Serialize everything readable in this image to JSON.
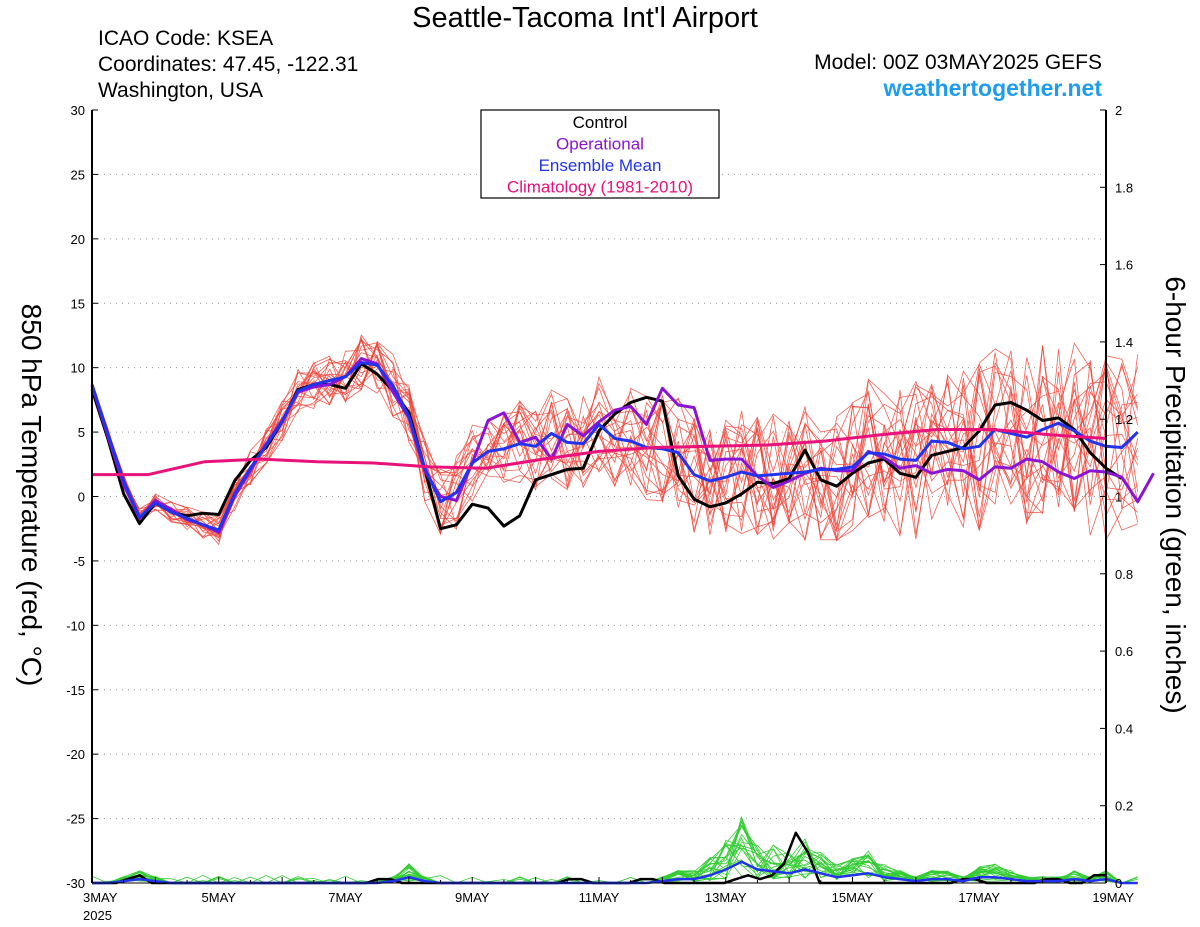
{
  "header": {
    "title": "Seattle-Tacoma Int'l Airport",
    "icao": "ICAO Code: KSEA",
    "coords": "Coordinates: 47.45, -122.31",
    "region": "Washington, USA",
    "model": "Model: 00Z 03MAY2025 GEFS",
    "site": "weathertogether.net"
  },
  "colors": {
    "control": "#000000",
    "operational": "#8a14d6",
    "ensemble_mean": "#2233ee",
    "climatology": "#e8127a",
    "members_temp": "#f0453a",
    "members_precip": "#33cc33",
    "site": "#1e9cf0"
  },
  "chart_data": {
    "type": "line",
    "ylabel": "850 hPa Temperature (red, °C)",
    "y2label": "6-hour Precipitation (green, inches)",
    "ylim": [
      -30,
      30
    ],
    "y2lim": [
      0,
      2
    ],
    "xlim_days": [
      0,
      16
    ],
    "grid": true,
    "legend_position": "top-center",
    "yticks": [
      "30",
      "25",
      "20",
      "15",
      "10",
      "5",
      "0",
      "-5",
      "-10",
      "-15",
      "-20",
      "-25",
      "-30"
    ],
    "y2ticks": [
      "2",
      "1.8",
      "1.6",
      "1.4",
      "1.2",
      "1",
      "0.8",
      "0.6",
      "0.4",
      "0.2",
      "0"
    ],
    "xticks": [
      {
        "day": 0,
        "label": "3MAY",
        "sub": "2025"
      },
      {
        "day": 2,
        "label": "5MAY"
      },
      {
        "day": 4,
        "label": "7MAY"
      },
      {
        "day": 6,
        "label": "9MAY"
      },
      {
        "day": 8,
        "label": "11MAY"
      },
      {
        "day": 10,
        "label": "13MAY"
      },
      {
        "day": 12,
        "label": "15MAY"
      },
      {
        "day": 14,
        "label": "17MAY"
      },
      {
        "day": 16,
        "label": "19MAY"
      }
    ],
    "legend": [
      "Control",
      "Operational",
      "Ensemble Mean",
      "Climatology (1981-2010)"
    ],
    "x_step_days": 0.25,
    "series": [
      {
        "name": "Control",
        "values": [
          8.3,
          4.5,
          0.2,
          -2.1,
          -0.5,
          -1.2,
          -1.5,
          -1.3,
          -1.4,
          1.2,
          2.8,
          3.8,
          5.8,
          8.3,
          8.7,
          8.7,
          8.4,
          10.3,
          9.5,
          8.2,
          6.5,
          2.2,
          -2.5,
          -2.2,
          -0.6,
          -0.9,
          -2.3,
          -1.5,
          1.3,
          1.7,
          2.1,
          2.2,
          5.1,
          6.4,
          7.3,
          7.7,
          7.4,
          1.6,
          -0.2,
          -0.8,
          -0.5,
          0.2,
          1.1,
          1.0,
          1.4,
          3.6,
          1.3,
          0.8,
          1.8,
          2.6,
          2.9,
          1.8,
          1.5,
          3.2,
          3.5,
          3.8,
          5.1,
          7.1,
          7.3,
          6.7,
          5.9,
          6.1,
          5.2,
          3.4,
          2.2,
          1.4
        ]
      },
      {
        "name": "Operational",
        "values": [
          8.6,
          4.7,
          0.9,
          -1.7,
          -0.3,
          -1.0,
          -1.8,
          -2.2,
          -2.8,
          0.0,
          2.0,
          4.1,
          5.9,
          8.1,
          8.5,
          8.7,
          9.3,
          10.7,
          10.3,
          8.1,
          6.1,
          2.0,
          0.0,
          -0.3,
          2.6,
          5.9,
          6.5,
          4.2,
          4.6,
          2.9,
          5.6,
          4.7,
          5.8,
          6.7,
          7.0,
          5.6,
          8.4,
          7.1,
          6.9,
          2.8,
          2.9,
          2.9,
          1.6,
          0.7,
          1.2,
          1.8,
          2.2,
          2.0,
          2.0,
          3.5,
          3.0,
          2.2,
          2.4,
          1.8,
          2.1,
          2.0,
          1.3,
          2.3,
          2.2,
          2.9,
          2.7,
          1.9,
          1.4,
          2.0,
          1.9,
          1.5,
          -0.4,
          1.8
        ]
      },
      {
        "name": "Ensemble Mean",
        "values": [
          8.7,
          4.9,
          1.2,
          -1.6,
          -0.5,
          -1.2,
          -1.7,
          -2.2,
          -2.6,
          0.2,
          2.2,
          4.0,
          5.8,
          8.2,
          8.7,
          9.0,
          9.3,
          10.4,
          10.2,
          8.6,
          6.2,
          2.2,
          -0.4,
          0.3,
          2.6,
          3.5,
          3.7,
          4.1,
          3.9,
          4.9,
          4.2,
          4.1,
          5.6,
          4.5,
          4.3,
          3.8,
          3.7,
          3.4,
          1.7,
          1.2,
          1.5,
          1.9,
          1.6,
          1.7,
          1.8,
          1.9,
          2.1,
          2.1,
          2.3,
          3.4,
          3.3,
          2.9,
          2.8,
          4.3,
          4.2,
          3.7,
          3.9,
          5.2,
          4.9,
          4.6,
          5.2,
          5.7,
          5.1,
          4.3,
          3.9,
          3.8,
          5.0
        ]
      },
      {
        "name": "Climatology (1981-2010)",
        "values": [
          1.7,
          1.7,
          2.7,
          2.9,
          2.7,
          2.6,
          2.3,
          2.2,
          2.9,
          3.5,
          3.8,
          3.9,
          4.0,
          4.3,
          4.8,
          5.2,
          5.2,
          4.8,
          4.5
        ]
      },
      {
        "name": "Control precip",
        "values": [
          0,
          0,
          0,
          0.01,
          0.02,
          0,
          0,
          0,
          0,
          0,
          0,
          0,
          0,
          0,
          0,
          0,
          0,
          0,
          0,
          0,
          0,
          0,
          0,
          0,
          0.01,
          0.01,
          0,
          0,
          0,
          0,
          0,
          0,
          0,
          0,
          0,
          0,
          0,
          0,
          0,
          0,
          0.01,
          0.01,
          0,
          0,
          0,
          0,
          0.01,
          0.01,
          0,
          0,
          0,
          0,
          0,
          0,
          0.01,
          0.02,
          0.01,
          0.02,
          0.05,
          0.13,
          0.08,
          0,
          0,
          0,
          0,
          0,
          0,
          0,
          0,
          0,
          0,
          0,
          0,
          0.01,
          0.01,
          0,
          0,
          0,
          0,
          0,
          0.01,
          0.01,
          0,
          0,
          0.02,
          0.02
        ]
      },
      {
        "name": "Ensemble Mean precip",
        "values": [
          0,
          0,
          0.005,
          0.01,
          0.005,
          0,
          0,
          0,
          0,
          0,
          0,
          0,
          0,
          0,
          0,
          0,
          0,
          0,
          0,
          0.005,
          0.015,
          0.005,
          0,
          0,
          0,
          0,
          0,
          0,
          0,
          0,
          0,
          0,
          0,
          0,
          0,
          0,
          0.005,
          0.01,
          0.01,
          0.02,
          0.035,
          0.055,
          0.035,
          0.03,
          0.025,
          0.035,
          0.025,
          0.015,
          0.02,
          0.025,
          0.015,
          0.01,
          0.005,
          0.01,
          0.01,
          0.005,
          0.015,
          0.015,
          0.01,
          0.005,
          0.005,
          0.005,
          0.01,
          0.005,
          0.01,
          0,
          0
        ]
      }
    ]
  }
}
